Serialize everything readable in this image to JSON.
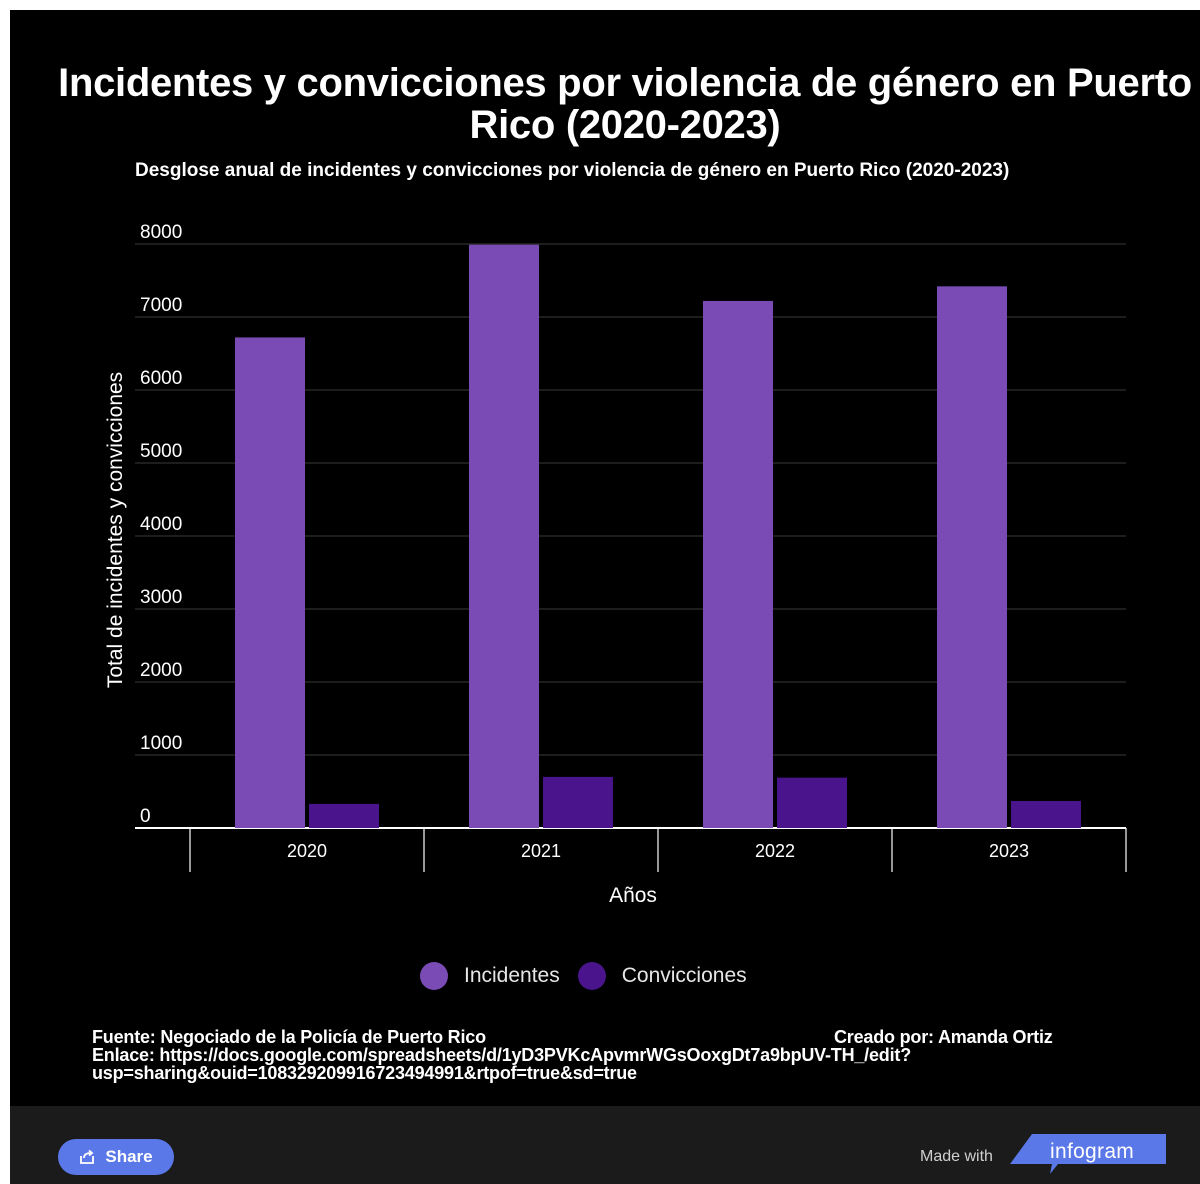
{
  "chart_data": {
    "type": "bar",
    "title": "Incidentes y convicciones por violencia de género en Puerto Rico (2020-2023)",
    "subtitle": "Desglose anual de incidentes y convicciones por violencia de género en Puerto Rico (2020-2023)",
    "categories": [
      "2020",
      "2021",
      "2022",
      "2023"
    ],
    "series": [
      {
        "name": "Incidentes",
        "values": [
          6720,
          7990,
          7220,
          7420
        ],
        "color": "#7a4bb5"
      },
      {
        "name": "Convicciones",
        "values": [
          330,
          700,
          690,
          370
        ],
        "color": "#4a148c"
      }
    ],
    "xlabel": "Años",
    "ylabel": "Total de incidentes y convicciones",
    "ylim": [
      0,
      8000
    ],
    "yticks": [
      "0",
      "1000",
      "2000",
      "3000",
      "4000",
      "5000",
      "6000",
      "7000",
      "8000"
    ],
    "grid": true,
    "legend": "bottom-center"
  },
  "footer": {
    "source": "Fuente: Negociado de la Policía de Puerto Rico",
    "credit": "Creado por: Amanda Ortiz",
    "link_line1": "Enlace: https://docs.google.com/spreadsheets/d/1yD3PVKcApvmrWGsOoxgDt7a9bpUV-TH_/edit?",
    "link_line2": "usp=sharing&ouid=108329209916723494991&rtpof=true&sd=true"
  },
  "bar": {
    "share_label": "Share",
    "made_with": "Made with",
    "brand": "infogram"
  },
  "colors": {
    "background": "#000000",
    "incidentes": "#7a4bb5",
    "convicciones": "#4a148c",
    "share_button": "#5b78e8",
    "brand": "#5b78e8"
  }
}
